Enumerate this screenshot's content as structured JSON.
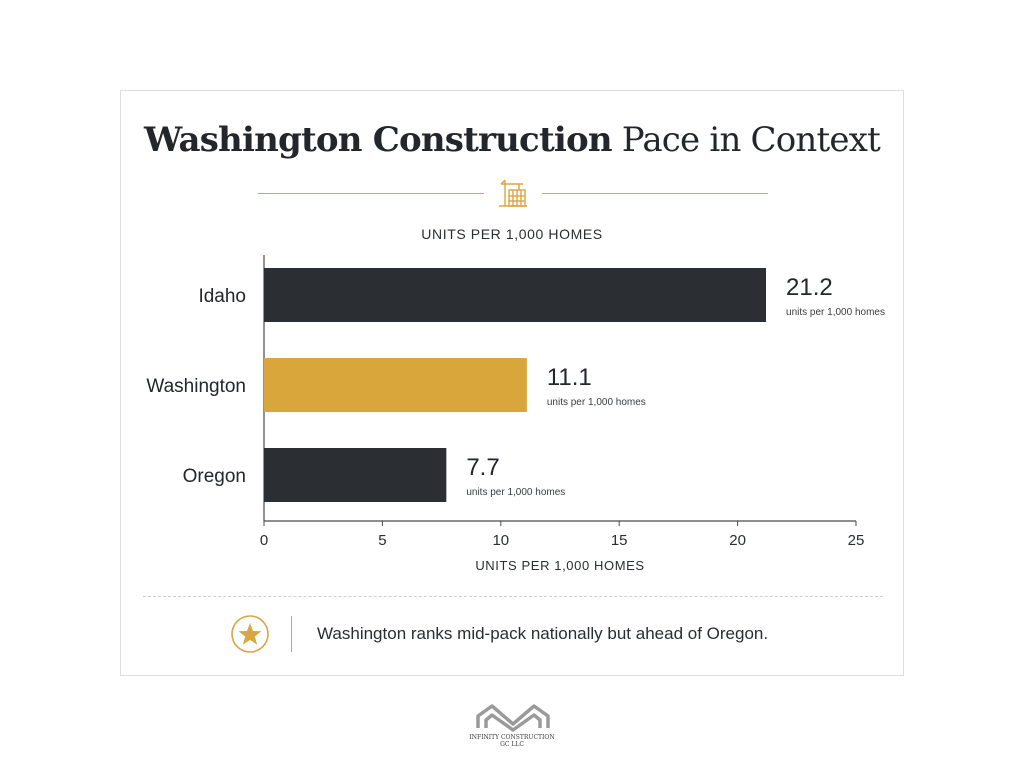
{
  "title": {
    "bold": "Washington Construction",
    "regular": "Pace in Context"
  },
  "subtitle": "UNITS PER 1,000 HOMES",
  "note": "Washington ranks mid-pack nationally but ahead of Oregon.",
  "logo": {
    "line1": "INFINITY CONSTRUCTION",
    "line2": "GC LLC"
  },
  "colors": {
    "dark": "#2b2e33",
    "accent": "#d9a63c",
    "gold_line": "#d9a640"
  },
  "icons": {
    "divider": "crane-icon",
    "note": "star-icon",
    "brand": "infinity-logo"
  },
  "chart_data": {
    "type": "bar",
    "orientation": "horizontal",
    "categories": [
      "Idaho",
      "Washington",
      "Oregon"
    ],
    "values": [
      21.2,
      11.1,
      7.7
    ],
    "value_unit_label": "units per 1,000 homes",
    "highlight": "Washington",
    "xlabel": "UNITS PER 1,000 HOMES",
    "xlim": [
      0,
      25
    ],
    "xticks": [
      0,
      5,
      10,
      15,
      20,
      25
    ],
    "grid": false
  }
}
